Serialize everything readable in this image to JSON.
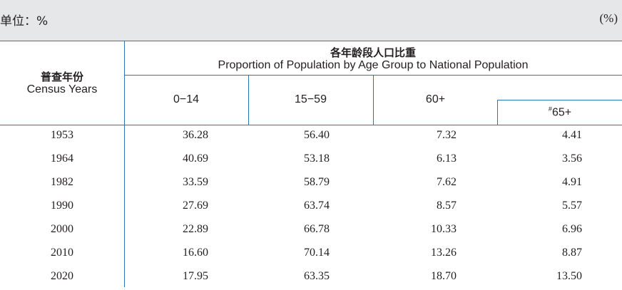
{
  "unit": {
    "label": "单位：%",
    "right": "(%)"
  },
  "header": {
    "census_cn": "普查年份",
    "census_en": "Census Years",
    "group_cn": "各年龄段人口比重",
    "group_en": "Proportion of Population by Age Group to National Population",
    "columns": [
      "0−14",
      "15−59",
      "60+"
    ],
    "col65_mark": "#",
    "col65": "65+"
  },
  "rows": [
    {
      "year": "1953",
      "v": [
        "36.28",
        "56.40",
        "7.32",
        "4.41"
      ]
    },
    {
      "year": "1964",
      "v": [
        "40.69",
        "53.18",
        "6.13",
        "3.56"
      ]
    },
    {
      "year": "1982",
      "v": [
        "33.59",
        "58.79",
        "7.62",
        "4.91"
      ]
    },
    {
      "year": "1990",
      "v": [
        "27.69",
        "63.74",
        "8.57",
        "5.57"
      ]
    },
    {
      "year": "2000",
      "v": [
        "22.89",
        "66.78",
        "10.33",
        "6.96"
      ]
    },
    {
      "year": "2010",
      "v": [
        "16.60",
        "70.14",
        "13.26",
        "8.87"
      ]
    },
    {
      "year": "2020",
      "v": [
        "17.95",
        "63.35",
        "18.70",
        "13.50"
      ]
    }
  ],
  "colors": {
    "rule": "#2e75b6",
    "band": "#e6e7e8",
    "text": "#231f20"
  }
}
